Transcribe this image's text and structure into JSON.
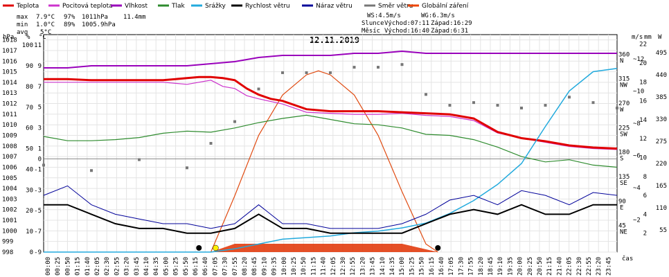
{
  "title": "12.11.2019",
  "legend": [
    {
      "label": "Teplota",
      "color": "#e00000"
    },
    {
      "label": "Pocitová teplota",
      "color": "#cc33cc"
    },
    {
      "label": "Vlhkost",
      "color": "#9900bb"
    },
    {
      "label": "Tlak",
      "color": "#2e8b2e"
    },
    {
      "label": "Srážky",
      "color": "#22aadd"
    },
    {
      "label": "Rychlost větru",
      "color": "#000000"
    },
    {
      "label": "Náraz větru",
      "color": "#000099"
    },
    {
      "label": "Směr větru",
      "color": "#777777"
    },
    {
      "label": "Globální záření",
      "color": "#ee4400"
    }
  ],
  "stats": {
    "max_label": "max",
    "max_temp": "7.9°C",
    "max_hum": "97%",
    "max_press": "1011hPa",
    "rain": "11.4mm",
    "min_label": "min",
    "min_temp": "1.0°C",
    "min_hum": "89%",
    "min_press": "1005.9hPa",
    "avg_label": "avg",
    "avg_temp": "5°C"
  },
  "info": {
    "ws": "WS:4.5m/s",
    "wg": "WG:6.3m/s",
    "sun_label": "Slunce",
    "sunrise": "Východ:07:11",
    "sunset": "Západ:16:29",
    "moon_label": "Měsíc",
    "moonrise": "Východ:16:40",
    "moonset": "Západ:6:31"
  },
  "axis_units": {
    "hpa": "hPa",
    "pct": "%",
    "c": "°C",
    "ms": "m/s",
    "mm": "mm",
    "w": "W",
    "time": "čas"
  },
  "left_axes": {
    "hpa": [
      "1018",
      "1017",
      "1016",
      "1015",
      "1014",
      "1013",
      "1012",
      "1011",
      "1010",
      "1009",
      "1008",
      "1007",
      "1006",
      "1005",
      "1004",
      "1003",
      "1002",
      "1001",
      "1000",
      "999",
      "998"
    ],
    "pct": [
      "100",
      "90",
      "80",
      "70",
      "60",
      "50",
      "40",
      "30",
      "20",
      "10",
      "0"
    ],
    "c": [
      "11",
      "9",
      "7",
      "5",
      "3",
      "1",
      "0",
      "-1",
      "-3",
      "-5",
      "-7",
      "-9"
    ]
  },
  "right_axes": {
    "dir": [
      {
        "deg": "360",
        "dir": "N"
      },
      {
        "deg": "315",
        "dir": "NW"
      },
      {
        "deg": "270",
        "dir": "W"
      },
      {
        "deg": "225",
        "dir": "SW"
      },
      {
        "deg": "180",
        "dir": "S"
      },
      {
        "deg": "135",
        "dir": "SE"
      },
      {
        "deg": "90",
        "dir": "E"
      },
      {
        "deg": "45",
        "dir": "NE"
      }
    ],
    "ms": [
      "22",
      "20",
      "18",
      "16",
      "14",
      "12",
      "10",
      "8",
      "6",
      "4",
      "2"
    ],
    "mm": [
      "~12",
      "~10",
      "~8",
      "~6",
      "~4",
      "~2"
    ],
    "w": [
      "495",
      "440",
      "385",
      "330",
      "275",
      "220",
      "165",
      "110",
      "55"
    ]
  },
  "time_ticks": [
    "00:00",
    "00:25",
    "00:50",
    "01:15",
    "01:40",
    "02:05",
    "02:30",
    "02:55",
    "03:20",
    "03:45",
    "04:10",
    "04:35",
    "05:00",
    "05:25",
    "05:50",
    "06:15",
    "06:40",
    "07:05",
    "07:30",
    "07:55",
    "08:20",
    "08:45",
    "09:10",
    "09:35",
    "10:00",
    "10:25",
    "10:50",
    "11:15",
    "11:40",
    "12:05",
    "12:30",
    "12:55",
    "13:20",
    "13:45",
    "14:10",
    "14:35",
    "15:00",
    "15:25",
    "15:50",
    "16:15",
    "16:40",
    "17:05",
    "17:30",
    "17:55",
    "18:20",
    "18:45",
    "19:10",
    "19:35",
    "20:00",
    "20:25",
    "20:50",
    "21:15",
    "21:40",
    "22:05",
    "22:30",
    "22:55",
    "23:20",
    "23:45"
  ],
  "chart_data": {
    "type": "line",
    "title": "12.11.2019",
    "xlabel": "čas",
    "x_range": [
      "00:00",
      "24:00"
    ],
    "temp_ylim": [
      -9,
      12
    ],
    "series": [
      {
        "name": "Teplota",
        "unit": "°C",
        "x": [
          0,
          1,
          2,
          3,
          4,
          5,
          6,
          6.5,
          7,
          7.5,
          8,
          8.5,
          9,
          9.5,
          10,
          11,
          12,
          13,
          14,
          15,
          16,
          17,
          18,
          19,
          20,
          21,
          22,
          23,
          24
        ],
        "values": [
          7.7,
          7.7,
          7.6,
          7.6,
          7.6,
          7.6,
          7.8,
          7.9,
          7.9,
          7.8,
          7.6,
          6.8,
          6.2,
          5.8,
          5.6,
          4.8,
          4.6,
          4.6,
          4.6,
          4.5,
          4.4,
          4.3,
          3.9,
          2.6,
          2.0,
          1.7,
          1.3,
          1.1,
          1.0
        ]
      },
      {
        "name": "Pocitová teplota",
        "unit": "°C",
        "x": [
          0,
          5,
          6,
          7,
          7.5,
          8,
          8.5,
          9,
          10,
          11,
          12,
          13,
          14,
          15,
          16,
          17,
          18,
          19,
          20,
          21,
          22,
          23,
          24
        ],
        "values": [
          7.4,
          7.4,
          7.2,
          7.6,
          7.0,
          6.8,
          6.1,
          5.8,
          5.3,
          4.5,
          4.4,
          4.3,
          4.3,
          4.4,
          4.2,
          4.1,
          3.7,
          2.5,
          2.0,
          1.6,
          1.2,
          1.0,
          0.9
        ]
      },
      {
        "name": "Vlhkost",
        "unit": "%",
        "x": [
          0,
          1,
          2,
          3,
          4,
          5,
          6,
          7,
          8,
          9,
          10,
          11,
          12,
          13,
          14,
          15,
          16,
          17,
          18,
          19,
          20,
          21,
          22,
          23,
          24
        ],
        "values": [
          89,
          89,
          90,
          90,
          90,
          90,
          90,
          91,
          92,
          94,
          95,
          95,
          95,
          96,
          96,
          97,
          96,
          96,
          96,
          96,
          96,
          96,
          96,
          96,
          96
        ]
      },
      {
        "name": "Tlak",
        "unit": "hPa",
        "x": [
          0,
          1,
          2,
          3,
          4,
          5,
          6,
          7,
          8,
          9,
          10,
          11,
          12,
          13,
          14,
          15,
          16,
          17,
          18,
          19,
          20,
          21,
          22,
          23,
          24
        ],
        "values": [
          1008.9,
          1008.5,
          1008.5,
          1008.6,
          1008.8,
          1009.2,
          1009.4,
          1009.3,
          1009.7,
          1010.2,
          1010.6,
          1010.9,
          1010.5,
          1010.1,
          1010.0,
          1009.7,
          1009.1,
          1009.0,
          1008.6,
          1007.9,
          1007.0,
          1006.5,
          1006.7,
          1006.2,
          1006.0
        ]
      },
      {
        "name": "Srážky",
        "unit": "mm",
        "x": [
          0,
          7,
          8,
          9,
          10,
          11,
          12,
          13,
          14,
          15,
          16,
          17,
          18,
          19,
          20,
          21,
          22,
          23,
          24
        ],
        "values": [
          0,
          0,
          0.2,
          0.5,
          0.8,
          0.9,
          1.0,
          1.2,
          1.3,
          1.5,
          1.8,
          2.4,
          3.2,
          4.2,
          5.5,
          7.8,
          10.0,
          11.2,
          11.4
        ]
      },
      {
        "name": "Rychlost větru",
        "unit": "m/s",
        "x": [
          0,
          1,
          2,
          3,
          4,
          5,
          6,
          7,
          8,
          9,
          10,
          11,
          12,
          13,
          14,
          15,
          16,
          17,
          18,
          19,
          20,
          21,
          22,
          23,
          24
        ],
        "values": [
          5,
          5,
          4,
          3,
          2.5,
          2.5,
          2,
          2,
          2.5,
          4,
          2.5,
          2.5,
          2,
          2,
          2,
          2,
          3,
          4,
          4.5,
          4,
          5,
          4,
          4,
          5,
          5
        ]
      },
      {
        "name": "Náraz větru",
        "unit": "m/s",
        "x": [
          0,
          1,
          2,
          3,
          4,
          5,
          6,
          7,
          8,
          9,
          10,
          11,
          12,
          13,
          14,
          15,
          16,
          17,
          18,
          19,
          20,
          21,
          22,
          23,
          24
        ],
        "values": [
          6,
          7,
          5,
          4,
          3.5,
          3,
          3,
          2.5,
          3,
          5,
          3,
          3,
          2.5,
          2.5,
          2.5,
          3,
          4,
          5.5,
          6,
          5,
          6.5,
          6,
          5,
          6.3,
          6
        ]
      },
      {
        "name": "Globální záření",
        "unit": "W",
        "x": [
          7.0,
          8,
          9,
          10,
          11,
          11.5,
          12,
          13,
          14,
          15,
          16,
          16.5
        ],
        "values": [
          0,
          140,
          290,
          390,
          440,
          450,
          440,
          390,
          290,
          150,
          20,
          0
        ]
      }
    ],
    "wind_direction": {
      "name": "Směr větru",
      "unit": "°",
      "x": [
        0,
        2,
        4,
        6,
        7,
        8,
        9,
        10,
        11,
        12,
        13,
        14,
        15,
        16,
        17,
        18,
        19,
        20,
        21,
        22,
        23,
        24
      ],
      "values": [
        160,
        150,
        170,
        155,
        200,
        240,
        300,
        330,
        330,
        330,
        340,
        340,
        345,
        290,
        270,
        275,
        270,
        265,
        270,
        285,
        275,
        265
      ]
    }
  }
}
